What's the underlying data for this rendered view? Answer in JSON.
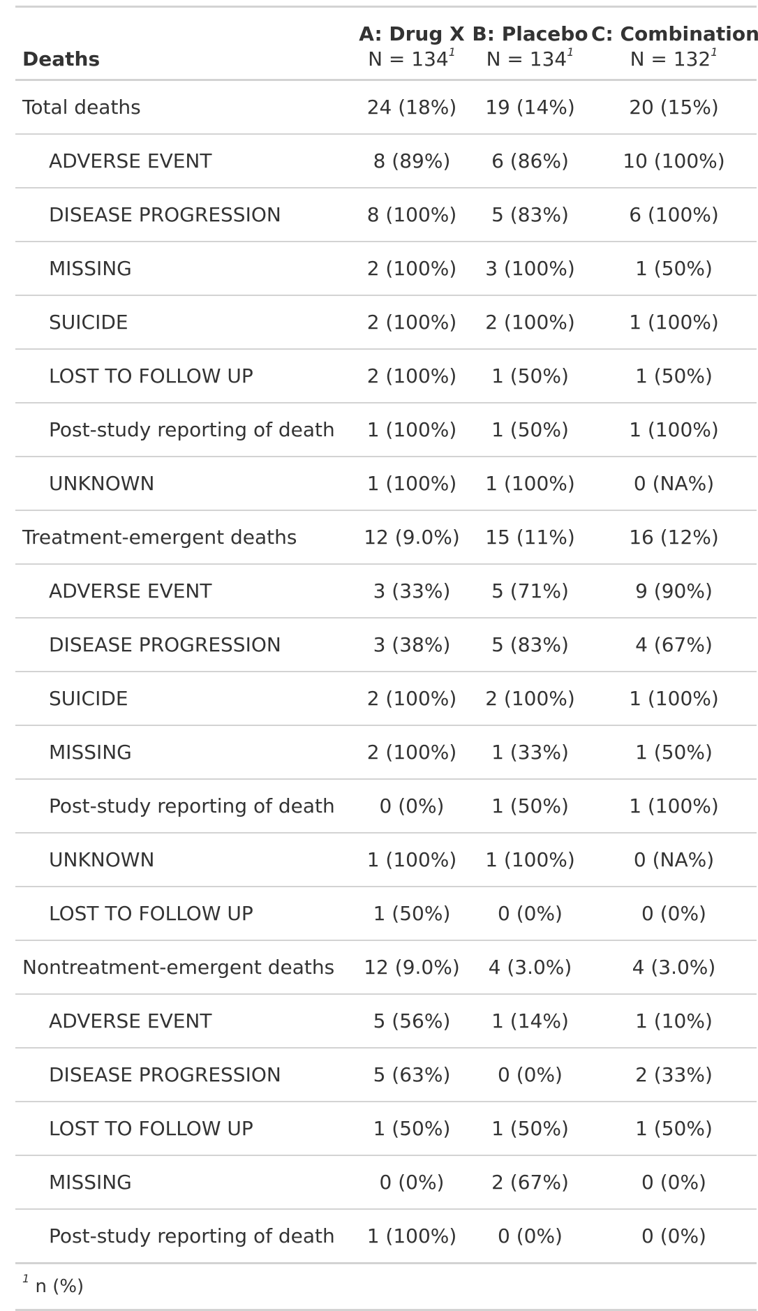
{
  "header": {
    "label": "Deaths",
    "columns": [
      {
        "title": "A: Drug X",
        "n": "N = 134"
      },
      {
        "title": "B: Placebo",
        "n": "N = 134"
      },
      {
        "title": "C: Combination",
        "n": "N = 132"
      }
    ],
    "footnote_mark": "1"
  },
  "rows": [
    {
      "label": "Total deaths",
      "a": "24 (18%)",
      "b": "19 (14%)",
      "c": "20 (15%)"
    },
    {
      "label": "ADVERSE EVENT",
      "a": "8 (89%)",
      "b": "6 (86%)",
      "c": "10 (100%)"
    },
    {
      "label": "DISEASE PROGRESSION",
      "a": "8 (100%)",
      "b": "5 (83%)",
      "c": "6 (100%)"
    },
    {
      "label": "MISSING",
      "a": "2 (100%)",
      "b": "3 (100%)",
      "c": "1 (50%)"
    },
    {
      "label": "SUICIDE",
      "a": "2 (100%)",
      "b": "2 (100%)",
      "c": "1 (100%)"
    },
    {
      "label": "LOST TO FOLLOW UP",
      "a": "2 (100%)",
      "b": "1 (50%)",
      "c": "1 (50%)"
    },
    {
      "label": "Post-study reporting of death",
      "a": "1 (100%)",
      "b": "1 (50%)",
      "c": "1 (100%)"
    },
    {
      "label": "UNKNOWN",
      "a": "1 (100%)",
      "b": "1 (100%)",
      "c": "0 (NA%)"
    },
    {
      "label": "Treatment-emergent deaths",
      "a": "12 (9.0%)",
      "b": "15 (11%)",
      "c": "16 (12%)"
    },
    {
      "label": "ADVERSE EVENT",
      "a": "3 (33%)",
      "b": "5 (71%)",
      "c": "9 (90%)"
    },
    {
      "label": "DISEASE PROGRESSION",
      "a": "3 (38%)",
      "b": "5 (83%)",
      "c": "4 (67%)"
    },
    {
      "label": "SUICIDE",
      "a": "2 (100%)",
      "b": "2 (100%)",
      "c": "1 (100%)"
    },
    {
      "label": "MISSING",
      "a": "2 (100%)",
      "b": "1 (33%)",
      "c": "1 (50%)"
    },
    {
      "label": "Post-study reporting of death",
      "a": "0 (0%)",
      "b": "1 (50%)",
      "c": "1 (100%)"
    },
    {
      "label": "UNKNOWN",
      "a": "1 (100%)",
      "b": "1 (100%)",
      "c": "0 (NA%)"
    },
    {
      "label": "LOST TO FOLLOW UP",
      "a": "1 (50%)",
      "b": "0 (0%)",
      "c": "0 (0%)"
    },
    {
      "label": "Nontreatment-emergent deaths",
      "a": "12 (9.0%)",
      "b": "4 (3.0%)",
      "c": "4 (3.0%)"
    },
    {
      "label": "ADVERSE EVENT",
      "a": "5 (56%)",
      "b": "1 (14%)",
      "c": "1 (10%)"
    },
    {
      "label": "DISEASE PROGRESSION",
      "a": "5 (63%)",
      "b": "0 (0%)",
      "c": "2 (33%)"
    },
    {
      "label": "LOST TO FOLLOW UP",
      "a": "1 (50%)",
      "b": "1 (50%)",
      "c": "1 (50%)"
    },
    {
      "label": "MISSING",
      "a": "0 (0%)",
      "b": "2 (67%)",
      "c": "0 (0%)"
    },
    {
      "label": "Post-study reporting of death",
      "a": "1 (100%)",
      "b": "0 (0%)",
      "c": "0 (0%)"
    }
  ],
  "footnote": {
    "mark": "1",
    "text": "n (%)"
  }
}
